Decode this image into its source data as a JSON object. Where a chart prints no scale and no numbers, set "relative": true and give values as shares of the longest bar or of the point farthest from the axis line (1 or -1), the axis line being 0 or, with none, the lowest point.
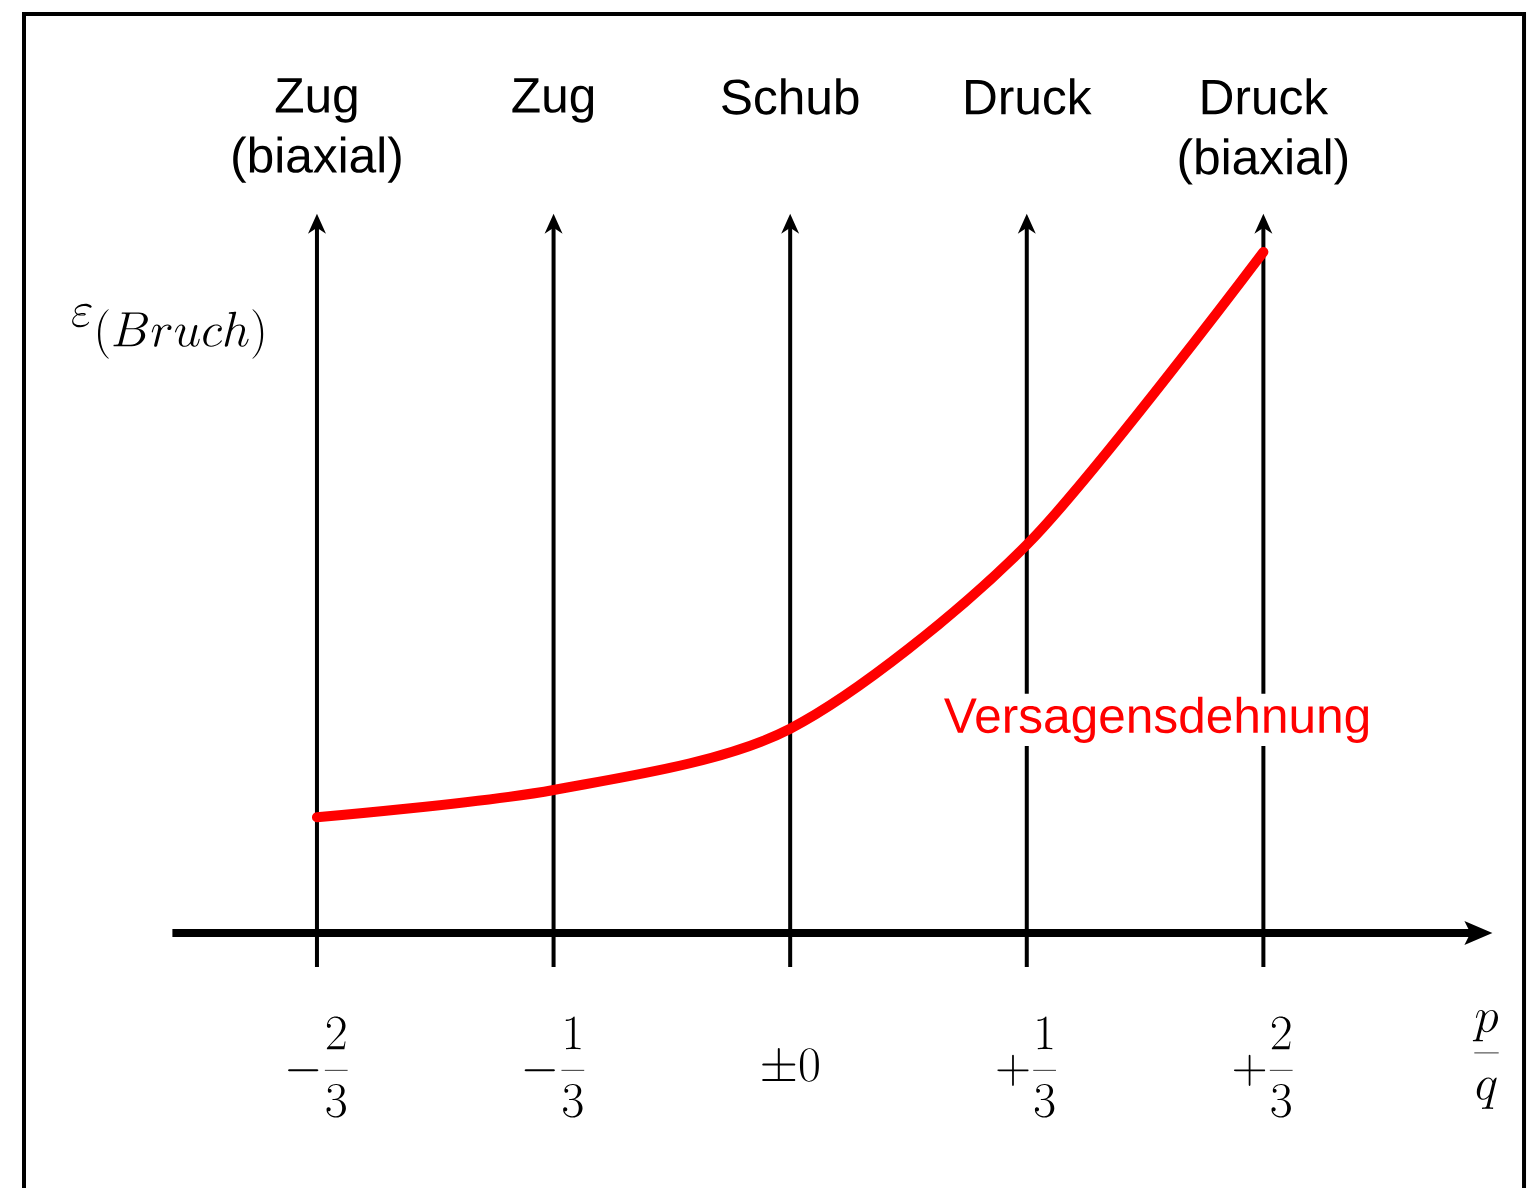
{
  "chart_data": {
    "type": "line",
    "relative": true,
    "xlabel": "\\frac{p}{q}",
    "ylabel": "\\varepsilon_{(Bruch)}",
    "categories": [
      "-\\frac{2}{3}",
      "-\\frac{1}{3}",
      "\\pm 0",
      "+\\frac{1}{3}",
      "+\\frac{2}{3}"
    ],
    "series": [
      {
        "name": "Versagensdehnung",
        "color": "#ff0000",
        "values": [
          0.17,
          0.21,
          0.3,
          0.57,
          1
        ]
      }
    ],
    "ref_lines": [
      {
        "axis": "x",
        "value": "-\\frac{2}{3}",
        "label": "Zug (biaxial)"
      },
      {
        "axis": "x",
        "value": "-\\frac{1}{3}",
        "label": "Zug"
      },
      {
        "axis": "x",
        "value": "\\pm 0",
        "label": "Schub"
      },
      {
        "axis": "x",
        "value": "+\\frac{1}{3}",
        "label": "Druck"
      },
      {
        "axis": "x",
        "value": "+\\frac{2}{3}",
        "label": "Druck (biaxial)"
      }
    ]
  }
}
